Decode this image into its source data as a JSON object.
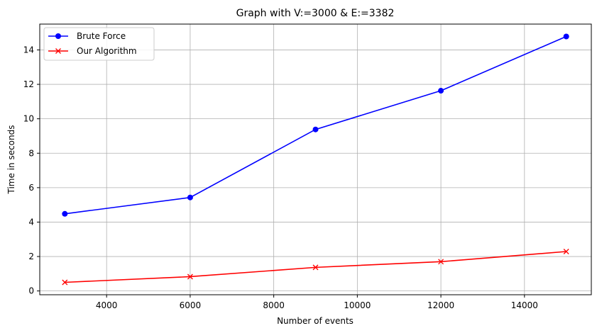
{
  "chart_data": {
    "type": "line",
    "title": "Graph with V:=3000 & E:=3382",
    "xlabel": "Number of events",
    "ylabel": "Time in seconds",
    "x": [
      3000,
      6000,
      9000,
      12000,
      15000
    ],
    "xlim": [
      2400,
      15600
    ],
    "ylim": [
      -0.22,
      15.5
    ],
    "xticks": [
      4000,
      6000,
      8000,
      10000,
      12000,
      14000
    ],
    "yticks": [
      0,
      2,
      4,
      6,
      8,
      10,
      12,
      14
    ],
    "grid": true,
    "legend_position": "top-left",
    "series": [
      {
        "name": "Brute Force",
        "values": [
          4.48,
          5.43,
          9.38,
          11.63,
          14.78
        ],
        "color": "#0000ff",
        "marker": "circle"
      },
      {
        "name": "Our Algorithm",
        "values": [
          0.5,
          0.83,
          1.37,
          1.7,
          2.29
        ],
        "color": "#ff0000",
        "marker": "x"
      }
    ]
  }
}
